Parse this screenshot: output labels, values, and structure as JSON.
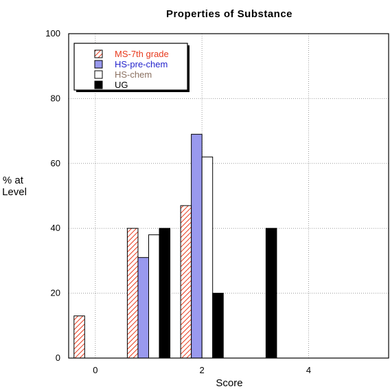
{
  "chart_data": {
    "type": "bar",
    "title": "Properties  of  Substance",
    "xlabel": "Score",
    "ylabel_lines": [
      "% at",
      "Level"
    ],
    "ylim": [
      0,
      100
    ],
    "yticks": [
      "0",
      "20",
      "40",
      "60",
      "80",
      "100"
    ],
    "xticks": [
      {
        "value": 0,
        "label": "0"
      },
      {
        "value": 2,
        "label": "2"
      },
      {
        "value": 4,
        "label": "4"
      }
    ],
    "xlim": [
      -0.5,
      5.5
    ],
    "grid": true,
    "legend_position": "top-left",
    "categories": [
      0,
      1,
      2,
      3
    ],
    "series": [
      {
        "name": "MS-7th grade",
        "color": "#e8391c",
        "text_color": "#e8391c",
        "fill": "hatched",
        "values": [
          13,
          40,
          47,
          0
        ]
      },
      {
        "name": "HS-pre-chem",
        "color": "#9999ee",
        "text_color": "#2222cc",
        "fill": "solid",
        "values": [
          0,
          31,
          69,
          0
        ]
      },
      {
        "name": "HS-chem",
        "color": "#ffffff",
        "text_color": "#8a7060",
        "fill": "outline",
        "values": [
          0,
          38,
          62,
          0
        ]
      },
      {
        "name": "UG",
        "color": "#000000",
        "text_color": "#000000",
        "fill": "solid",
        "values": [
          0,
          40,
          20,
          40
        ]
      }
    ]
  }
}
